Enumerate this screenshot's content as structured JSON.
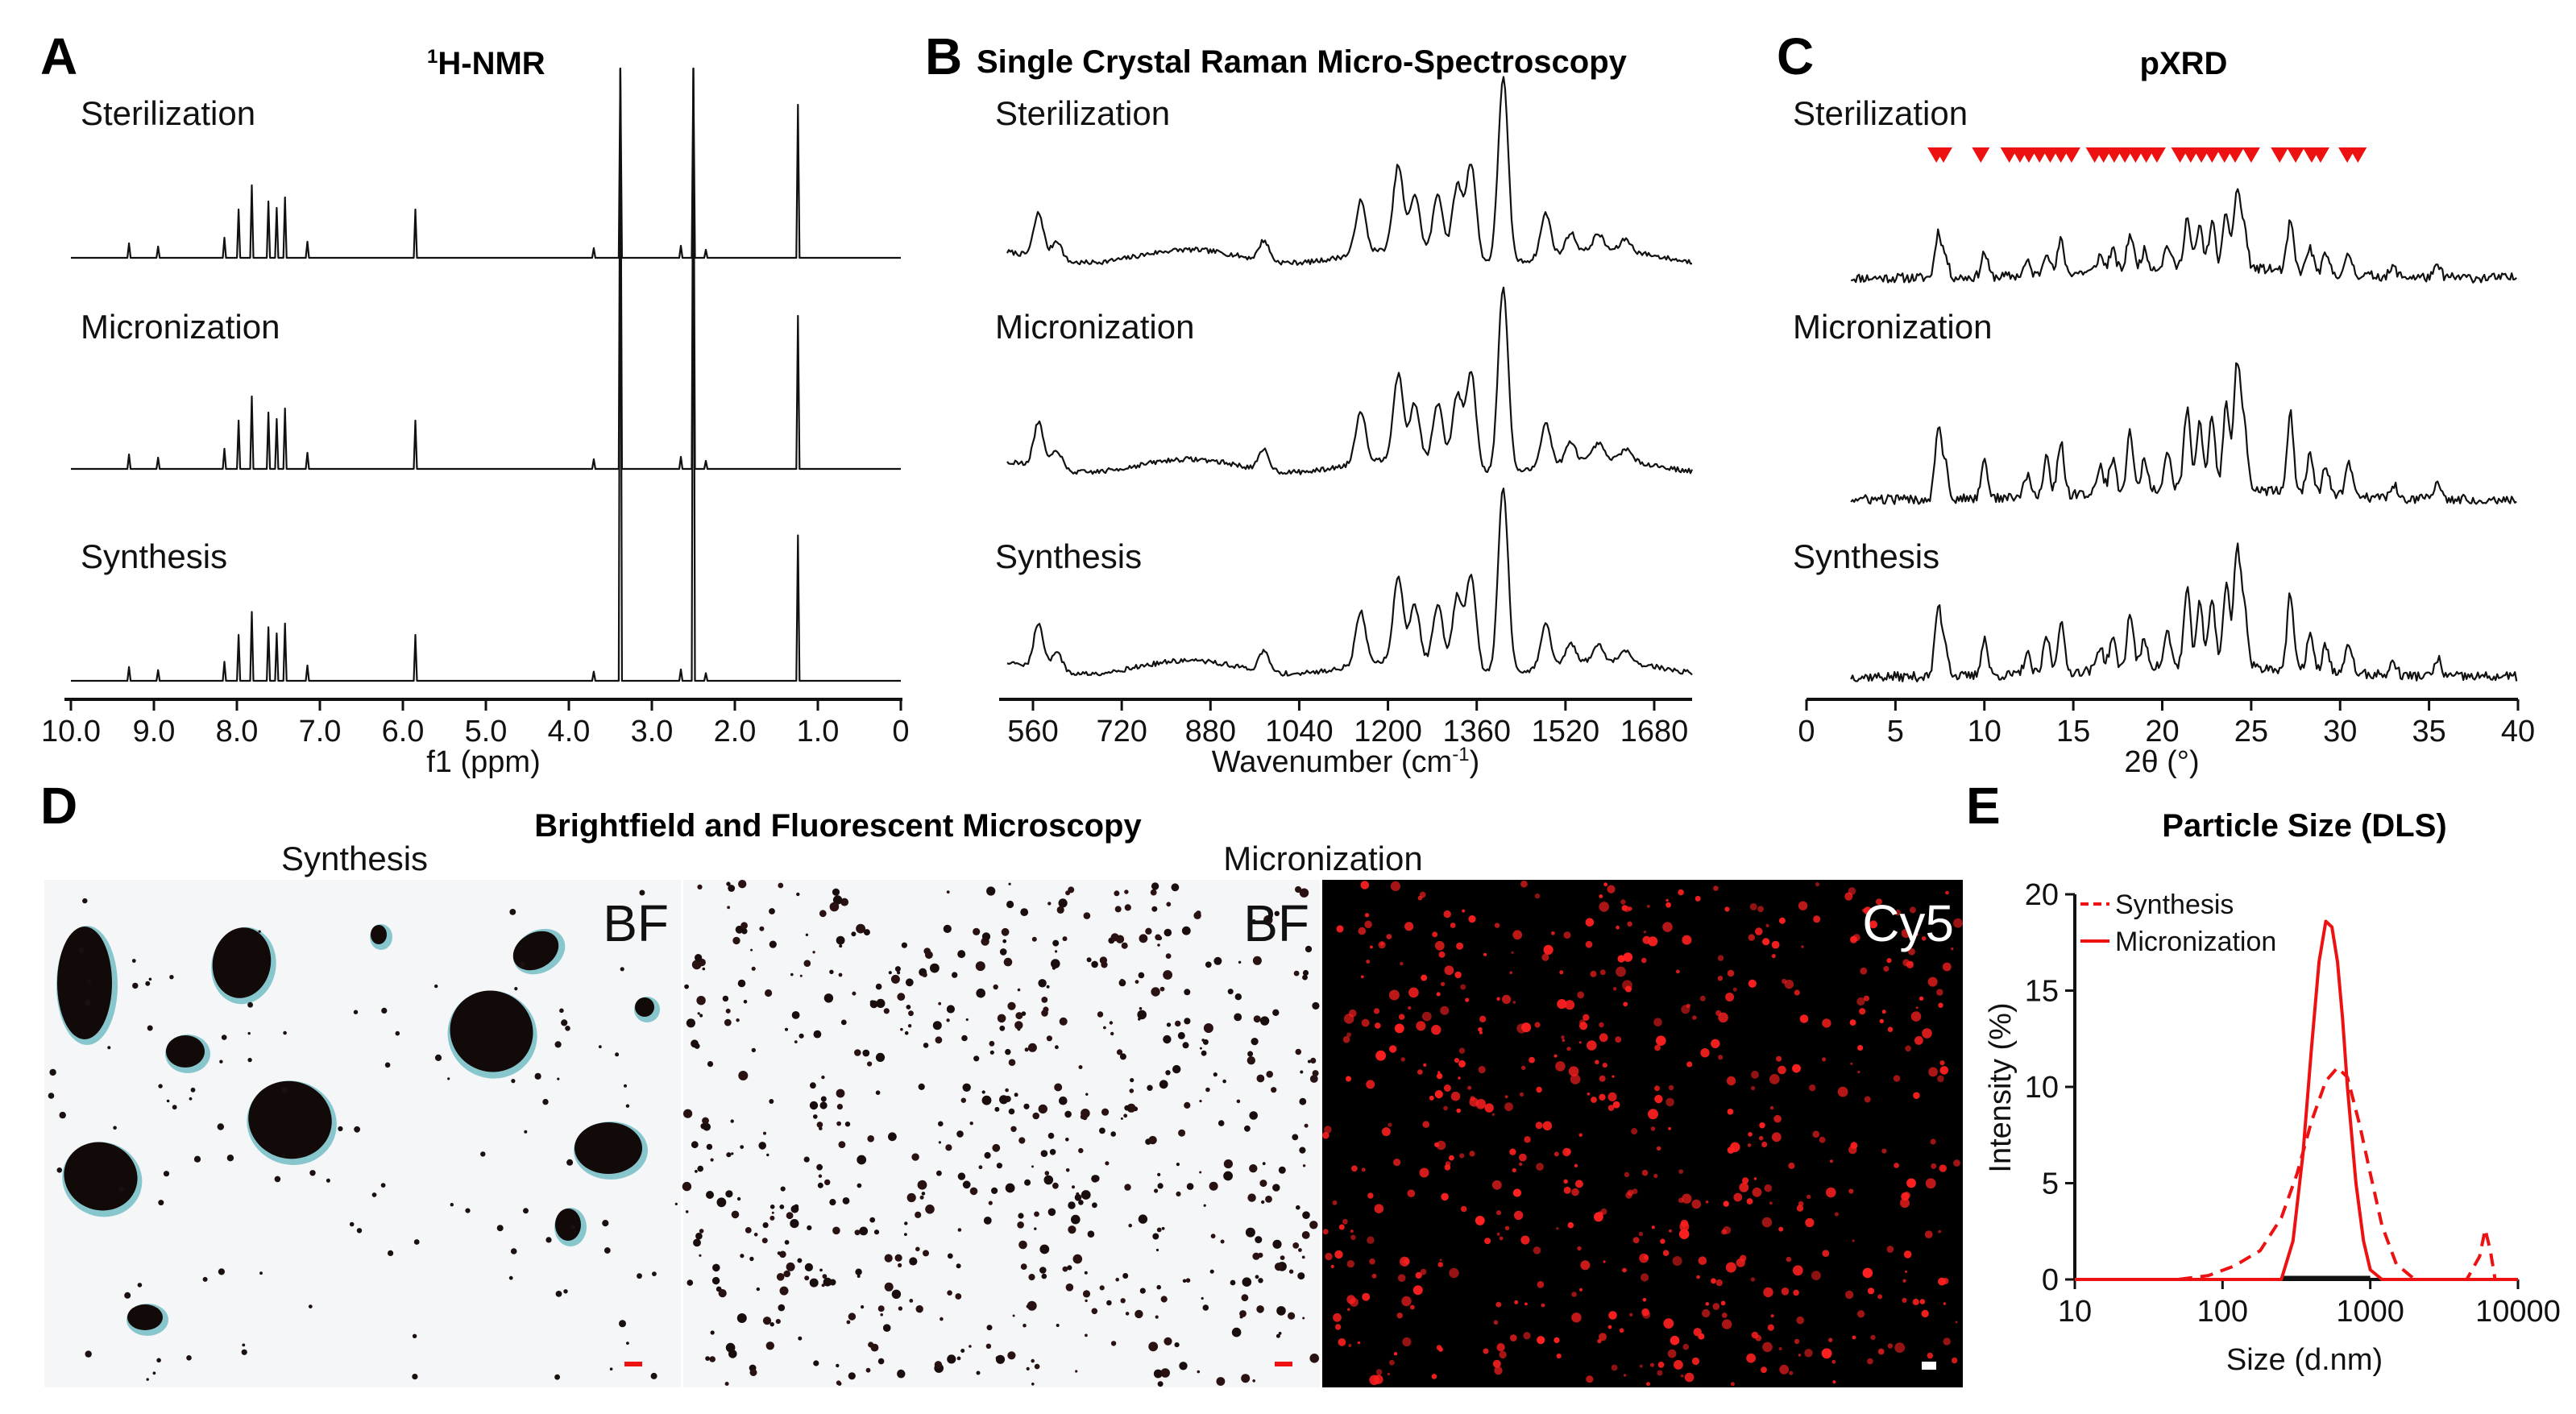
{
  "panel_letters": {
    "a": "A",
    "b": "B",
    "c": "C",
    "d": "D",
    "e": "E"
  },
  "sample_labels": [
    "Sterilization",
    "Micronization",
    "Synthesis"
  ],
  "nmr": {
    "title_sup": "1",
    "title_main": "H-NMR",
    "xlabel": "f1 (ppm)",
    "xticks": [
      "10.0",
      "9.0",
      "8.0",
      "7.0",
      "6.0",
      "5.0",
      "4.0",
      "3.0",
      "2.0",
      "1.0",
      "0"
    ],
    "xlim": [
      10,
      0
    ]
  },
  "raman": {
    "title": "Single Crystal Raman Micro-Spectroscopy",
    "xlabel_main": "Wavenumber (cm",
    "xlabel_sup": "-1",
    "xlabel_end": ")",
    "xticks": [
      "560",
      "720",
      "880",
      "1040",
      "1200",
      "1360",
      "1520",
      "1680"
    ],
    "xlim": [
      520,
      1760
    ]
  },
  "pxrd": {
    "title": "pXRD",
    "xlabel": "2θ (°)",
    "xticks": [
      "0",
      "5",
      "10",
      "15",
      "20",
      "25",
      "30",
      "35",
      "40"
    ],
    "xlim": [
      0,
      40
    ],
    "marker_color": "#ee1111"
  },
  "microscopy": {
    "title": "Brightfield and Fluorescent Microscopy",
    "left_label": "Synthesis",
    "right_label": "Micronization",
    "bf1": "BF",
    "bf2": "BF",
    "fl": "Cy5",
    "fluor_color": "#ff2020"
  },
  "chart_data": [
    {
      "type": "line",
      "panel": "E",
      "title": "Particle Size (DLS)",
      "xlabel": "Size (d.nm)",
      "ylabel": "Intensity (%)",
      "xscale": "log",
      "xlim": [
        10,
        10000
      ],
      "ylim": [
        0,
        20
      ],
      "xticks": [
        "10",
        "100",
        "1000",
        "10000"
      ],
      "yticks": [
        "0",
        "5",
        "10",
        "15",
        "20"
      ],
      "legend_position": "top-left",
      "color": "#ee1111",
      "series": [
        {
          "name": "Synthesis",
          "style": "dashed",
          "x": [
            10,
            50,
            80,
            120,
            180,
            250,
            320,
            400,
            500,
            600,
            700,
            850,
            1000,
            1200,
            1500,
            2000,
            3000,
            4500,
            5500,
            6000,
            6500,
            7000,
            8000,
            10000
          ],
          "y": [
            0,
            0,
            0.2,
            0.7,
            1.5,
            3.2,
            5.5,
            8.2,
            10.3,
            11.0,
            10.5,
            8.0,
            5.5,
            2.8,
            0.8,
            0,
            0,
            0,
            1.2,
            2.6,
            1.5,
            0,
            0,
            0
          ]
        },
        {
          "name": "Micronization",
          "style": "solid",
          "x": [
            10,
            100,
            250,
            300,
            350,
            400,
            450,
            500,
            550,
            600,
            650,
            700,
            800,
            900,
            1000,
            1200,
            10000
          ],
          "y": [
            0,
            0,
            0,
            2.0,
            6.5,
            12.0,
            16.5,
            18.6,
            18.3,
            16.5,
            13.5,
            10.0,
            5.0,
            2.0,
            0.5,
            0,
            0
          ]
        }
      ]
    }
  ]
}
